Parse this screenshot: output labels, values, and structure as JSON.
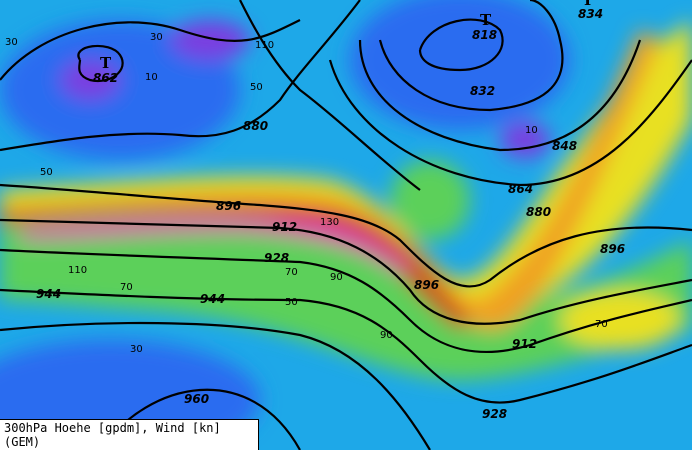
{
  "map": {
    "caption": "300hPa Hoehe [gpdm], Wind [kn] (GEM)",
    "colors": {
      "low_wind": "#2a5cf0",
      "cyan": "#19c8e0",
      "green": "#5cd05a",
      "yellow": "#e8e020",
      "orange": "#f0a020",
      "red": "#c83c14",
      "jet_core": "#e03cb4",
      "purple": "#7a3ce0"
    },
    "pressure_systems": [
      {
        "symbol": "T",
        "value": "862"
      },
      {
        "symbol": "T",
        "value": "818"
      },
      {
        "symbol": "T",
        "value": "834"
      }
    ],
    "height_labels": [
      "832",
      "848",
      "864",
      "880",
      "880",
      "896",
      "896",
      "896",
      "912",
      "912",
      "928",
      "928",
      "944",
      "944",
      "960"
    ],
    "wind_labels": [
      "30",
      "50",
      "10",
      "30",
      "110",
      "70",
      "90",
      "130",
      "50",
      "70",
      "10",
      "30",
      "50",
      "70",
      "90",
      "110"
    ]
  }
}
